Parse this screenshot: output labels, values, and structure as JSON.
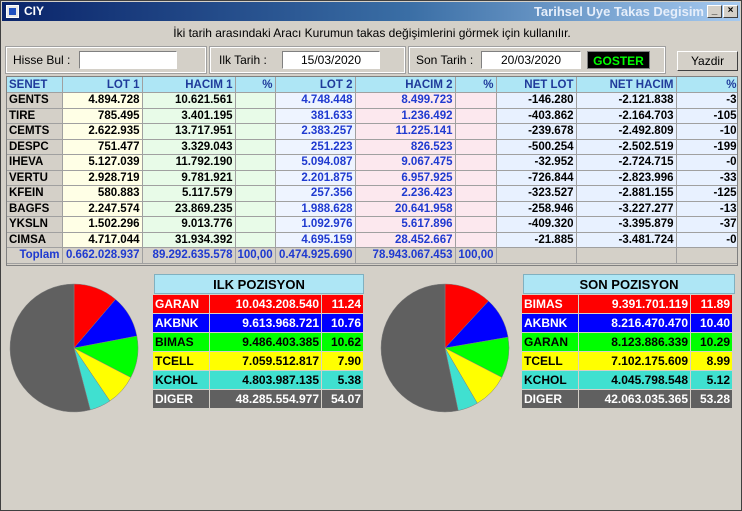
{
  "window": {
    "title": "CIY",
    "subtitle": "Tarihsel Uye Takas Degisim"
  },
  "instruction": "İki tarih arasındaki  Aracı Kurumun takas değişimlerini görmek için kullanılır.",
  "controls": {
    "hisse_label": "Hisse Bul :",
    "hisse_value": "",
    "ilk_label": "Ilk Tarih :",
    "ilk_value": "15/03/2020",
    "son_label": "Son Tarih :",
    "son_value": "20/03/2020",
    "goster_label": "GOSTER",
    "yazdir_label": "Yazdir"
  },
  "table": {
    "headers": [
      "SENET",
      "LOT 1",
      "HACIM 1",
      "%",
      "LOT 2",
      "HACIM 2",
      "%",
      "NET LOT",
      "NET HACIM",
      "%"
    ],
    "rows": [
      [
        "GENTS",
        "4.894.728",
        "10.621.561",
        "",
        "4.748.448",
        "8.499.723",
        "",
        "-146.280",
        "-2.121.838",
        "-3"
      ],
      [
        "TIRE",
        "785.495",
        "3.401.195",
        "",
        "381.633",
        "1.236.492",
        "",
        "-403.862",
        "-2.164.703",
        "-105"
      ],
      [
        "CEMTS",
        "2.622.935",
        "13.717.951",
        "",
        "2.383.257",
        "11.225.141",
        "",
        "-239.678",
        "-2.492.809",
        "-10"
      ],
      [
        "DESPC",
        "751.477",
        "3.329.043",
        "",
        "251.223",
        "826.523",
        "",
        "-500.254",
        "-2.502.519",
        "-199"
      ],
      [
        "IHEVA",
        "5.127.039",
        "11.792.190",
        "",
        "5.094.087",
        "9.067.475",
        "",
        "-32.952",
        "-2.724.715",
        "-0"
      ],
      [
        "VERTU",
        "2.928.719",
        "9.781.921",
        "",
        "2.201.875",
        "6.957.925",
        "",
        "-726.844",
        "-2.823.996",
        "-33"
      ],
      [
        "KFEIN",
        "580.883",
        "5.117.579",
        "",
        "257.356",
        "2.236.423",
        "",
        "-323.527",
        "-2.881.155",
        "-125"
      ],
      [
        "BAGFS",
        "2.247.574",
        "23.869.235",
        "",
        "1.988.628",
        "20.641.958",
        "",
        "-258.946",
        "-3.227.277",
        "-13"
      ],
      [
        "YKSLN",
        "1.502.296",
        "9.013.776",
        "",
        "1.092.976",
        "5.617.896",
        "",
        "-409.320",
        "-3.395.879",
        "-37"
      ],
      [
        "CIMSA",
        "4.717.044",
        "31.934.392",
        "",
        "4.695.159",
        "28.452.667",
        "",
        "-21.885",
        "-3.481.724",
        "-0"
      ]
    ],
    "total": [
      "Toplam",
      "0.662.028.937",
      "89.292.635.578",
      "100,00",
      "0.474.925.690",
      "78.943.067.453",
      "100,00",
      "",
      "",
      ""
    ]
  },
  "ilk_pozisyon": {
    "title": "ILK POZISYON",
    "rows": [
      {
        "name": "GARAN",
        "value": "10.043.208.540",
        "pct": "11.24",
        "pct_num": 11.24,
        "bg": "#ff0000",
        "fg": "#ffffff"
      },
      {
        "name": "AKBNK",
        "value": "9.613.968.721",
        "pct": "10.76",
        "pct_num": 10.76,
        "bg": "#0000ff",
        "fg": "#ffffff"
      },
      {
        "name": "BIMAS",
        "value": "9.486.403.385",
        "pct": "10.62",
        "pct_num": 10.62,
        "bg": "#00ff00",
        "fg": "#000000"
      },
      {
        "name": "TCELL",
        "value": "7.059.512.817",
        "pct": "7.90",
        "pct_num": 7.9,
        "bg": "#ffff00",
        "fg": "#000000"
      },
      {
        "name": "KCHOL",
        "value": "4.803.987.135",
        "pct": "5.38",
        "pct_num": 5.38,
        "bg": "#40e0d0",
        "fg": "#000000"
      },
      {
        "name": "DIGER",
        "value": "48.285.554.977",
        "pct": "54.07",
        "pct_num": 54.07,
        "bg": "#606060",
        "fg": "#ffffff"
      }
    ]
  },
  "son_pozisyon": {
    "title": "SON POZISYON",
    "rows": [
      {
        "name": "BIMAS",
        "value": "9.391.701.119",
        "pct": "11.89",
        "pct_num": 11.89,
        "bg": "#ff0000",
        "fg": "#ffffff"
      },
      {
        "name": "AKBNK",
        "value": "8.216.470.470",
        "pct": "10.40",
        "pct_num": 10.4,
        "bg": "#0000ff",
        "fg": "#ffffff"
      },
      {
        "name": "GARAN",
        "value": "8.123.886.339",
        "pct": "10.29",
        "pct_num": 10.29,
        "bg": "#00ff00",
        "fg": "#000000"
      },
      {
        "name": "TCELL",
        "value": "7.102.175.609",
        "pct": "8.99",
        "pct_num": 8.99,
        "bg": "#ffff00",
        "fg": "#000000"
      },
      {
        "name": "KCHOL",
        "value": "4.045.798.548",
        "pct": "5.12",
        "pct_num": 5.12,
        "bg": "#40e0d0",
        "fg": "#000000"
      },
      {
        "name": "DIGER",
        "value": "42.063.035.365",
        "pct": "53.28",
        "pct_num": 53.28,
        "bg": "#606060",
        "fg": "#ffffff"
      }
    ]
  }
}
